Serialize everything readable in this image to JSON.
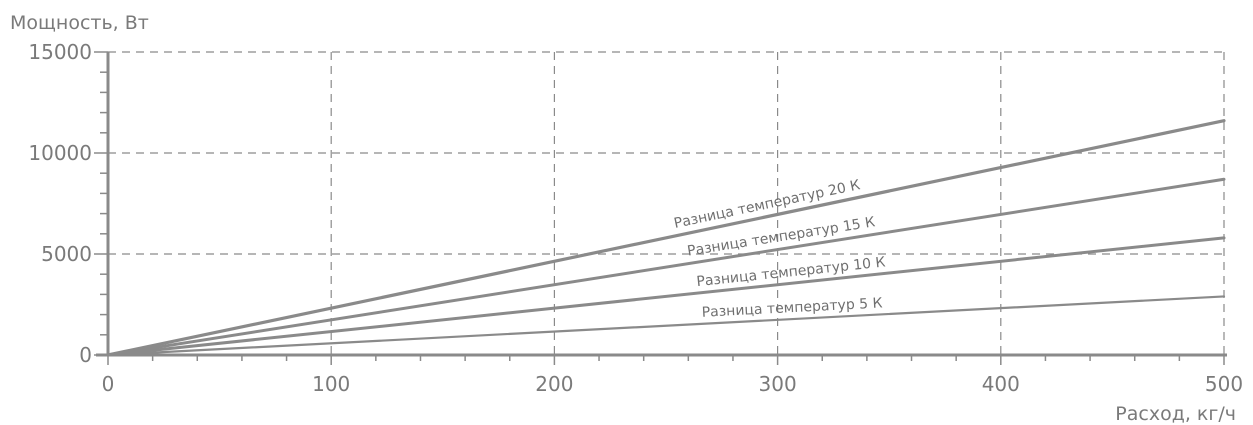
{
  "chart_data": {
    "type": "line",
    "ylabel": "Мощность, Вт",
    "xlabel": "Расход, кг/ч",
    "xlim": [
      0,
      500
    ],
    "ylim": [
      0,
      15000
    ],
    "x_ticks": [
      "0",
      "100",
      "200",
      "300",
      "400",
      "500"
    ],
    "y_ticks": [
      "0",
      "5000",
      "10000",
      "15000"
    ],
    "grid": true,
    "series": [
      {
        "name": "Разница  температур 20 К",
        "x": [
          0,
          500
        ],
        "values": [
          0,
          11600
        ]
      },
      {
        "name": "Разница температур 15  К",
        "x": [
          0,
          500
        ],
        "values": [
          0,
          8700
        ]
      },
      {
        "name": "Разница температур 10  К",
        "x": [
          0,
          500
        ],
        "values": [
          0,
          5800
        ]
      },
      {
        "name": "Разница температур 5 К",
        "x": [
          0,
          500
        ],
        "values": [
          0,
          2900
        ]
      }
    ]
  }
}
